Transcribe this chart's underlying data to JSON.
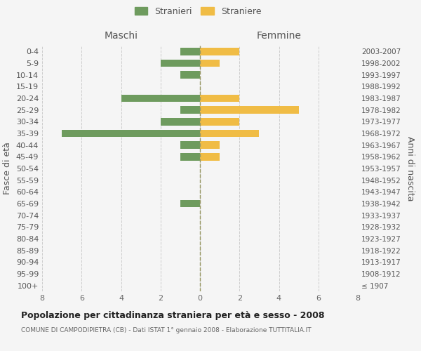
{
  "age_groups": [
    "100+",
    "95-99",
    "90-94",
    "85-89",
    "80-84",
    "75-79",
    "70-74",
    "65-69",
    "60-64",
    "55-59",
    "50-54",
    "45-49",
    "40-44",
    "35-39",
    "30-34",
    "25-29",
    "20-24",
    "15-19",
    "10-14",
    "5-9",
    "0-4"
  ],
  "birth_years": [
    "≤ 1907",
    "1908-1912",
    "1913-1917",
    "1918-1922",
    "1923-1927",
    "1928-1932",
    "1933-1937",
    "1938-1942",
    "1943-1947",
    "1948-1952",
    "1953-1957",
    "1958-1962",
    "1963-1967",
    "1968-1972",
    "1973-1977",
    "1978-1982",
    "1983-1987",
    "1988-1992",
    "1993-1997",
    "1998-2002",
    "2003-2007"
  ],
  "males": [
    0,
    0,
    0,
    0,
    0,
    0,
    0,
    1,
    0,
    0,
    0,
    1,
    1,
    7,
    2,
    1,
    4,
    0,
    1,
    2,
    1
  ],
  "females": [
    0,
    0,
    0,
    0,
    0,
    0,
    0,
    0,
    0,
    0,
    0,
    1,
    1,
    3,
    2,
    5,
    2,
    0,
    0,
    1,
    2
  ],
  "male_color": "#6e9b5e",
  "female_color": "#f0bc45",
  "background_color": "#f5f5f5",
  "grid_color": "#cccccc",
  "title": "Popolazione per cittadinanza straniera per età e sesso - 2008",
  "subtitle": "COMUNE DI CAMPODIPIETRA (CB) - Dati ISTAT 1° gennaio 2008 - Elaborazione TUTTITALIA.IT",
  "ylabel_left": "Fasce di età",
  "ylabel_right": "Anni di nascita",
  "xlabel_maschi": "Maschi",
  "xlabel_femmine": "Femmine",
  "legend_male": "Stranieri",
  "legend_female": "Straniere",
  "xlim": 8,
  "bar_height": 0.65
}
